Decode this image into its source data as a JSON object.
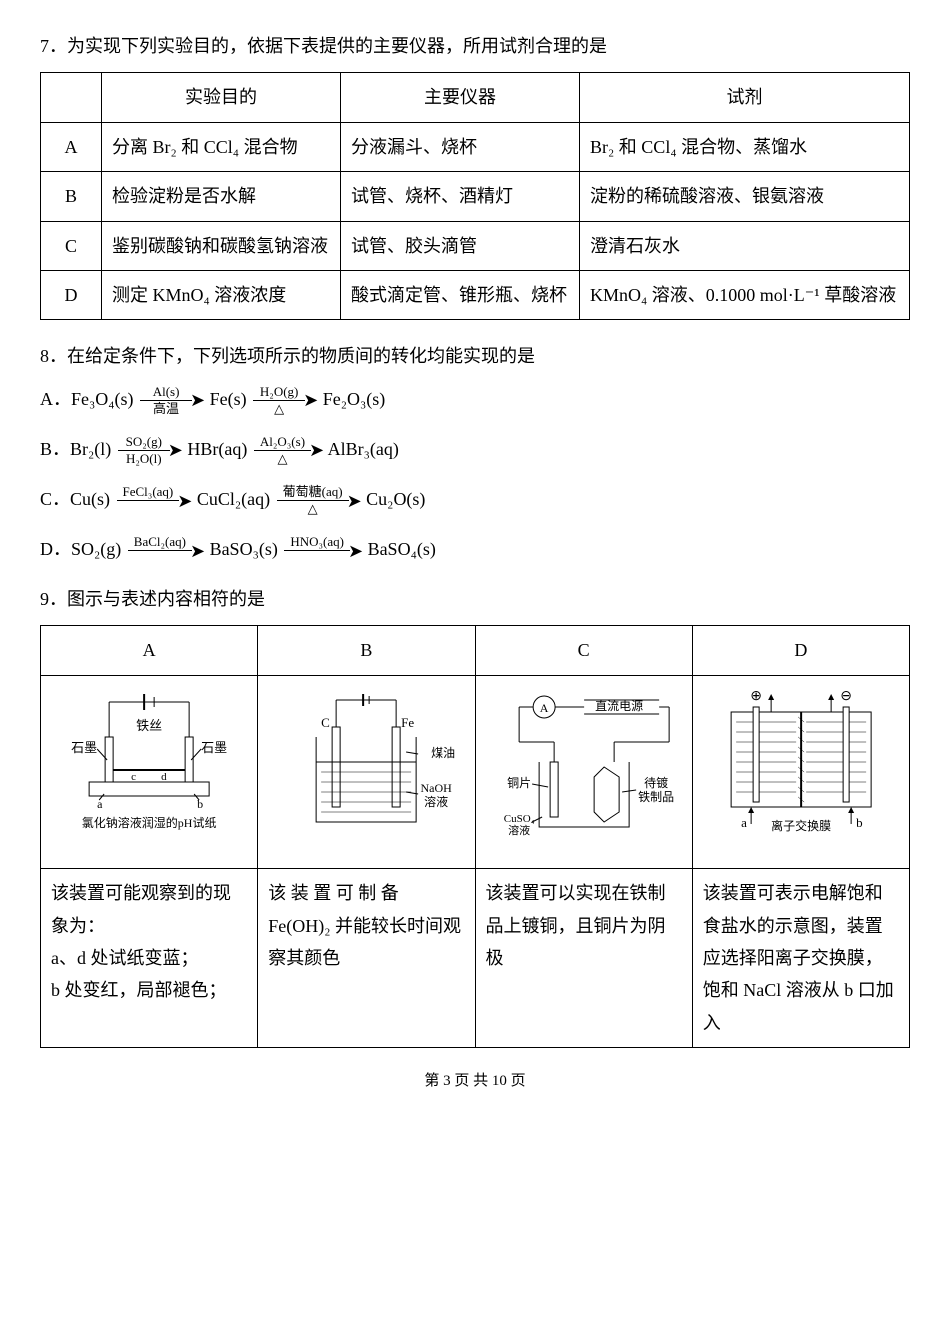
{
  "q7": {
    "number": "7．",
    "prompt": "为实现下列实验目的，依据下表提供的主要仪器，所用试剂合理的是",
    "headers": [
      "",
      "实验目的",
      "主要仪器",
      "试剂"
    ],
    "rows": [
      {
        "label": "A",
        "purpose": "分离 Br₂ 和 CCl₄ 混合物",
        "apparatus": "分液漏斗、烧杯",
        "reagent": "Br₂ 和 CCl₄ 混合物、蒸馏水"
      },
      {
        "label": "B",
        "purpose": "检验淀粉是否水解",
        "apparatus": "试管、烧杯、酒精灯",
        "reagent": "淀粉的稀硫酸溶液、银氨溶液"
      },
      {
        "label": "C",
        "purpose": "鉴别碳酸钠和碳酸氢钠溶液",
        "apparatus": "试管、胶头滴管",
        "reagent": "澄清石灰水"
      },
      {
        "label": "D",
        "purpose": "测定 KMnO₄ 溶液浓度",
        "apparatus": "酸式滴定管、锥形瓶、烧杯",
        "reagent": "KMnO₄ 溶液、0.1000 mol·L⁻¹ 草酸溶液"
      }
    ]
  },
  "q8": {
    "number": "8．",
    "prompt": "在给定条件下，下列选项所示的物质间的转化均能实现的是",
    "options": [
      {
        "label": "A．",
        "steps": [
          {
            "from": "Fe₃O₄(s)",
            "top": "Al(s)",
            "bot": "高温",
            "to": "Fe(s)"
          },
          {
            "from": "",
            "top": "H₂O(g)",
            "bot": "△",
            "to": "Fe₂O₃(s)"
          }
        ]
      },
      {
        "label": "B．",
        "steps": [
          {
            "from": "Br₂(l)",
            "top": "SO₂(g)",
            "bot": "H₂O(l)",
            "to": "HBr(aq)"
          },
          {
            "from": "",
            "top": "Al₂O₃(s)",
            "bot": "△",
            "to": "AlBr₃(aq)"
          }
        ]
      },
      {
        "label": "C．",
        "steps": [
          {
            "from": "Cu(s)",
            "top": "FeCl₃(aq)",
            "bot": "",
            "to": "CuCl₂(aq)"
          },
          {
            "from": "",
            "top": "葡萄糖(aq)",
            "bot": "△",
            "to": "Cu₂O(s)"
          }
        ]
      },
      {
        "label": "D．",
        "steps": [
          {
            "from": "SO₂(g)",
            "top": "BaCl₂(aq)",
            "bot": "",
            "to": "BaSO₃(s)"
          },
          {
            "from": "",
            "top": "HNO₃(aq)",
            "bot": "",
            "to": "BaSO₄(s)"
          }
        ]
      }
    ]
  },
  "q9": {
    "number": "9．",
    "prompt": "图示与表述内容相符的是",
    "headers": [
      "A",
      "B",
      "C",
      "D"
    ],
    "diagrams": {
      "A": {
        "labels": {
          "iron_wire": "铁丝",
          "graphite_l": "石墨",
          "graphite_r": "石墨",
          "a": "a",
          "b": "b",
          "c": "c",
          "d": "d",
          "caption": "氯化钠溶液润湿的pH试纸"
        }
      },
      "B": {
        "labels": {
          "c": "C",
          "fe": "Fe",
          "oil": "煤油",
          "naoh": "NaOH\n溶液"
        }
      },
      "C": {
        "labels": {
          "ammeter": "A",
          "dc": "直流电源",
          "cu": "铜片",
          "cuso4": "CuSO₄\n溶液",
          "plated": "待镀\n铁制品"
        }
      },
      "D": {
        "labels": {
          "plus": "⊕",
          "minus": "⊖",
          "a": "a",
          "b": "b",
          "membrane": "离子交换膜"
        }
      }
    },
    "descriptions": [
      "该装置可能观察到的现象为：\na、d 处试纸变蓝；\nb 处变红，局部褪色；",
      "该 装 置 可 制 备 Fe(OH)₂ 并能较长时间观察其颜色",
      "该装置可以实现在铁制品上镀铜，且铜片为阴极",
      "该装置可表示电解饱和食盐水的示意图，装置应选择阳离子交换膜，饱和 NaCl 溶液从 b 口加入"
    ]
  },
  "footer": "第 3 页 共 10 页",
  "colors": {
    "text": "#000000",
    "bg": "#ffffff",
    "border": "#000000"
  }
}
